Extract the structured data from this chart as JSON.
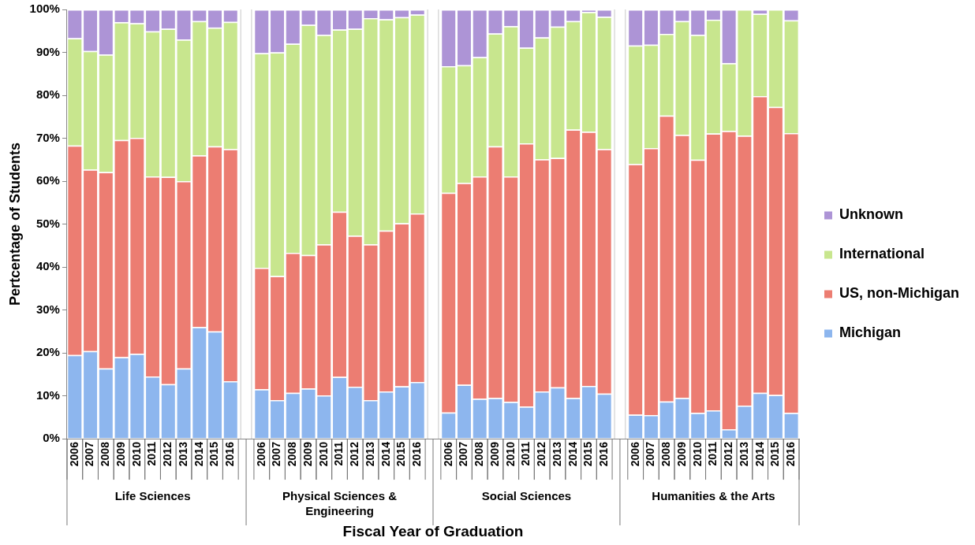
{
  "chart_data": {
    "type": "bar",
    "stacked": true,
    "xlabel": "Fiscal Year of Graduation",
    "ylabel": "Pertcentage of Students",
    "categories": [
      "2006",
      "2007",
      "2008",
      "2009",
      "2010",
      "2011",
      "2012",
      "2013",
      "2014",
      "2015",
      "2016",
      null,
      "2006",
      "2007",
      "2008",
      "2009",
      "2010",
      "2011",
      "2012",
      "2013",
      "2014",
      "2015",
      "2016",
      null,
      "2006",
      "2007",
      "2008",
      "2009",
      "2010",
      "2011",
      "2012",
      "2013",
      "2014",
      "2015",
      "2016",
      null,
      "2006",
      "2007",
      "2008",
      "2009",
      "2010",
      "2011",
      "2012",
      "2013",
      "2014",
      "2015",
      "2016"
    ],
    "annotations": [
      "Life Sciences",
      "Physical Sciences & Engineering",
      "Social Sciences",
      "Humanities & the Arts"
    ],
    "ylim": [
      0,
      100
    ],
    "yticks": [
      {
        "value": 0,
        "label": "0%"
      },
      {
        "value": 10,
        "label": "10%"
      },
      {
        "value": 20,
        "label": "20%"
      },
      {
        "value": 30,
        "label": "30%"
      },
      {
        "value": 40,
        "label": "40%"
      },
      {
        "value": 50,
        "label": "50%"
      },
      {
        "value": 60,
        "label": "60%"
      },
      {
        "value": 70,
        "label": "70%"
      },
      {
        "value": 80,
        "label": "80%"
      },
      {
        "value": 90,
        "label": "90%"
      },
      {
        "value": 100,
        "label": "100%"
      }
    ],
    "grid": false,
    "legend": "right",
    "series": [
      {
        "name": "Michigan",
        "color": "#8db6ee",
        "values": [
          19.5,
          20.4,
          16.4,
          19,
          19.8,
          14.5,
          12.7,
          16.4,
          26,
          25,
          13.4,
          null,
          11.5,
          9,
          10.7,
          11.7,
          10.1,
          14.4,
          12.1,
          9,
          11,
          12.2,
          13.2,
          null,
          6.1,
          12.6,
          9.3,
          9.5,
          8.6,
          7.5,
          11,
          12,
          9.5,
          12.3,
          10.5,
          null,
          5.6,
          5.5,
          8.7,
          9.5,
          6,
          6.6,
          2.2,
          7.7,
          10.7,
          10.2,
          6
        ]
      },
      {
        "name": "US, non-Michigan",
        "color": "#ec7d72",
        "values": [
          48.8,
          42.3,
          45.7,
          50.6,
          50.3,
          46.6,
          48.3,
          43.6,
          40,
          43.1,
          54.1,
          null,
          28.3,
          28.9,
          32.6,
          31.1,
          35.2,
          38.5,
          35.2,
          36.3,
          37.5,
          38,
          39.3,
          null,
          51.2,
          47,
          51.8,
          58.6,
          52.5,
          61.3,
          54.1,
          53.4,
          62.5,
          59.2,
          57,
          null,
          58.4,
          62.2,
          66.6,
          61.3,
          59,
          64.5,
          69.5,
          62.9,
          69.1,
          67.1,
          65.2
        ]
      },
      {
        "name": "International",
        "color": "#c8e68e",
        "values": [
          25,
          27.6,
          27.4,
          27.4,
          26.7,
          33.8,
          34.5,
          33,
          31.3,
          27.7,
          29.6,
          null,
          50,
          52.1,
          48.7,
          53.6,
          48.8,
          42.4,
          48.2,
          52.7,
          49.2,
          48,
          46.3,
          null,
          29.5,
          27.4,
          27.8,
          26.3,
          35,
          22.3,
          28.4,
          30.6,
          25.3,
          27.9,
          30.8,
          null,
          27.6,
          24.1,
          19,
          26.5,
          29.1,
          26.5,
          15.8,
          29.4,
          19.2,
          22.7,
          26.3
        ]
      },
      {
        "name": "Unknown",
        "color": "#ad94d6",
        "values": [
          6.7,
          9.7,
          10.5,
          3,
          3.2,
          5.1,
          4.5,
          7,
          2.7,
          4.2,
          2.9,
          null,
          10.2,
          10,
          8,
          3.6,
          5.9,
          4.7,
          4.5,
          2,
          2.3,
          1.8,
          1.2,
          null,
          13.2,
          13,
          11.1,
          5.6,
          3.9,
          8.9,
          6.5,
          4,
          2.7,
          0.6,
          1.7,
          null,
          8.4,
          8.2,
          5.7,
          2.7,
          5.9,
          2.4,
          12.5,
          0,
          1,
          0,
          2.5
        ]
      }
    ]
  }
}
